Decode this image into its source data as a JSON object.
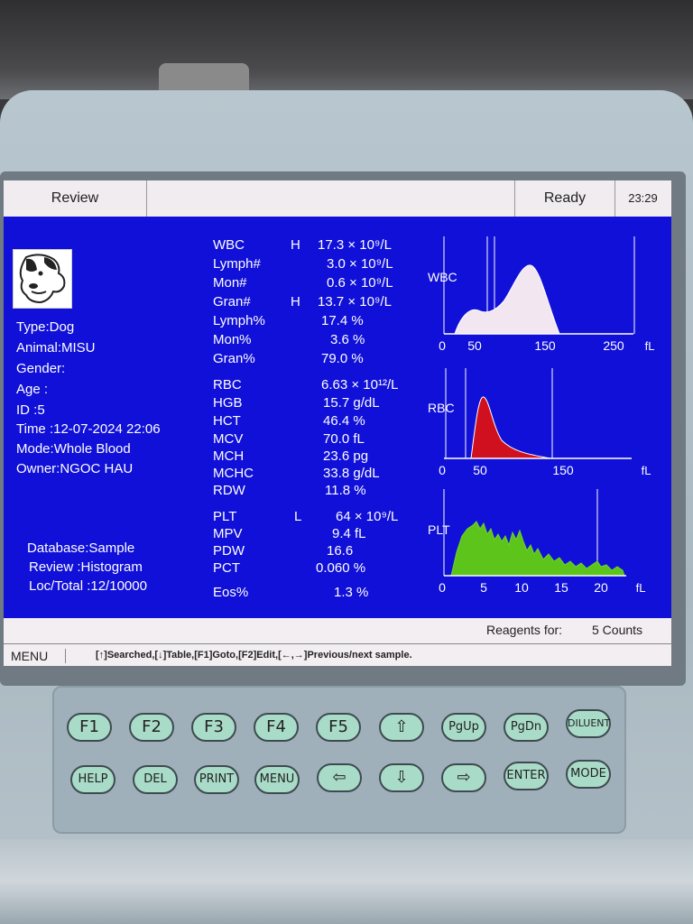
{
  "topbar": {
    "mode": "Review",
    "status": "Ready",
    "time": "23:29"
  },
  "sample": [
    {
      "label": "Type:Dog"
    },
    {
      "label": "Animal:MISU"
    },
    {
      "label": "Gender:"
    },
    {
      "label": "Age  :"
    },
    {
      "label": "ID    :5"
    },
    {
      "label": "Time :12-07-2024 22:06"
    },
    {
      "label": "Mode:Whole Blood"
    },
    {
      "label": "Owner:NGOC HAU"
    }
  ],
  "review_info": [
    {
      "label": "Database:Sample"
    },
    {
      "label": "Review    :Histogram"
    },
    {
      "label": "Loc/Total :12/10000"
    }
  ],
  "results": [
    {
      "name": "WBC",
      "flag": "H",
      "value": "17.3 × 10⁹/L"
    },
    {
      "name": "Lymph#",
      "flag": "",
      "value": "3.0 × 10⁹/L"
    },
    {
      "name": "Mon#",
      "flag": "",
      "value": "0.6 × 10⁹/L"
    },
    {
      "name": "Gran#",
      "flag": "H",
      "value": "13.7 × 10⁹/L"
    },
    {
      "name": "Lymph%",
      "flag": "",
      "value": "17.4 %"
    },
    {
      "name": "Mon%",
      "flag": "",
      "value": "3.6 %"
    },
    {
      "name": "Gran%",
      "flag": "",
      "value": "79.0 %"
    },
    {
      "name": "RBC",
      "flag": "",
      "value": "6.63 × 10¹²/L"
    },
    {
      "name": "HGB",
      "flag": "",
      "value": "15.7 g/dL"
    },
    {
      "name": "HCT",
      "flag": "",
      "value": "46.4 %"
    },
    {
      "name": "MCV",
      "flag": "",
      "value": "70.0 fL"
    },
    {
      "name": "MCH",
      "flag": "",
      "value": "23.6 pg"
    },
    {
      "name": "MCHC",
      "flag": "",
      "value": "33.8 g/dL"
    },
    {
      "name": "RDW",
      "flag": "",
      "value": "11.8 %"
    },
    {
      "name": "PLT",
      "flag": "L",
      "value": "64 × 10⁹/L"
    },
    {
      "name": "MPV",
      "flag": "",
      "value": "9.4 fL"
    },
    {
      "name": "PDW",
      "flag": "",
      "value": "16.6"
    },
    {
      "name": "PCT",
      "flag": "",
      "value": "0.060 %"
    },
    {
      "name": "Eos%",
      "flag": "",
      "value": "1.3 %"
    }
  ],
  "histograms": {
    "wbc": {
      "label": "WBC",
      "ticks": [
        "0",
        "50",
        "150",
        "250"
      ],
      "unit": "fL",
      "color": "#f2e6f0"
    },
    "rbc": {
      "label": "RBC",
      "ticks": [
        "0",
        "50",
        "150"
      ],
      "unit": "fL",
      "color": "#d0101e"
    },
    "plt": {
      "label": "PLT",
      "ticks": [
        "0",
        "5",
        "10",
        "15",
        "20"
      ],
      "unit": "fL",
      "color": "#5cc41a"
    }
  },
  "status": {
    "reagents_label": "Reagents for:",
    "reagents_value": "5 Counts"
  },
  "help": {
    "menu": "MENU",
    "text": "[↑]Searched,[↓]Table,[F1]Goto,[F2]Edit,[←,→]Previous/next sample."
  },
  "keys_row1": [
    "F1",
    "F2",
    "F3",
    "F4",
    "F5",
    "⇧",
    "PgUp",
    "PgDn",
    "DILUENT"
  ],
  "keys_row2": [
    "HELP",
    "DEL",
    "PRINT",
    "MENU",
    "⇦",
    "⇩",
    "⇨",
    "ENTER",
    "MODE"
  ]
}
